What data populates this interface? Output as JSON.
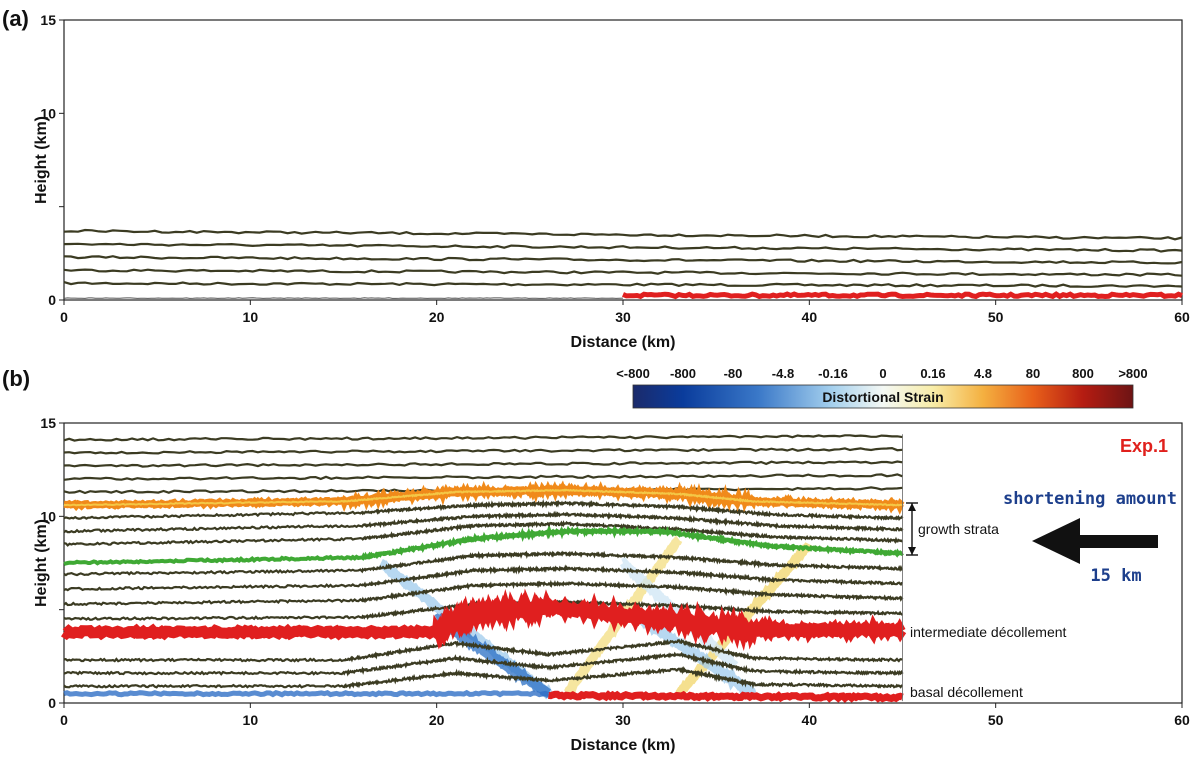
{
  "chart_data": [
    {
      "panel_label": "(a)",
      "type": "scatter",
      "xlabel": "Distance (km)",
      "ylabel": "Height (km)",
      "xlim": [
        0,
        60
      ],
      "ylim": [
        0,
        15
      ],
      "x_ticks": [
        0,
        10,
        20,
        30,
        40,
        50,
        60
      ],
      "y_ticks": [
        0,
        5,
        10,
        15
      ],
      "y_tick_labels": [
        "0",
        "",
        "10",
        "15"
      ],
      "layer_lines": [
        {
          "x": [
            0,
            60
          ],
          "y": [
            0.9,
            0.75
          ]
        },
        {
          "x": [
            0,
            60
          ],
          "y": [
            1.6,
            1.35
          ]
        },
        {
          "x": [
            0,
            60
          ],
          "y": [
            2.3,
            2.0
          ]
        },
        {
          "x": [
            0,
            60
          ],
          "y": [
            3.0,
            2.65
          ]
        },
        {
          "x": [
            0,
            60
          ],
          "y": [
            3.7,
            3.3
          ]
        }
      ],
      "decollement": {
        "x": [
          30,
          60
        ],
        "y": [
          0.25,
          0.25
        ]
      },
      "grid": false
    },
    {
      "panel_label": "(b)",
      "type": "scatter",
      "xlabel": "Distance (km)",
      "ylabel": "Height (km)",
      "xlim": [
        0,
        60
      ],
      "ylim": [
        0,
        15
      ],
      "x_ticks": [
        0,
        10,
        20,
        30,
        40,
        50,
        60
      ],
      "y_ticks": [
        0,
        5,
        10,
        15
      ],
      "y_tick_labels": [
        "0",
        "",
        "10",
        "15"
      ],
      "colorbar": {
        "title": "Distortional Strain",
        "tick_labels": [
          "<-800",
          "-800",
          "-80",
          "-4.8",
          "-0.16",
          "0",
          "0.16",
          "4.8",
          "80",
          "800",
          ">800"
        ],
        "colors": [
          "#1b2a6b",
          "#0a3c9c",
          "#3a78c8",
          "#a6d1ee",
          "#eef6fb",
          "#fbf6c8",
          "#f4c35a",
          "#ef7c1a",
          "#d4260f",
          "#8e1616",
          "#6d1414"
        ]
      },
      "annotations": {
        "experiment": "Exp.1",
        "shortening_title": "shortening amount",
        "shortening_value": "15 km",
        "growth_strata": "growth strata",
        "intermediate_decollement": "intermediate décollement",
        "basal_decollement": "basal décollement"
      },
      "model_extent_x": [
        0,
        45
      ],
      "layer_lines_km": [
        {
          "x": [
            0,
            15,
            21,
            26,
            33,
            37,
            45
          ],
          "y": [
            0.9,
            0.9,
            1.6,
            1.2,
            1.8,
            1.0,
            0.9
          ]
        },
        {
          "x": [
            0,
            15,
            21,
            26,
            33,
            37,
            45
          ],
          "y": [
            1.6,
            1.6,
            2.4,
            1.9,
            2.6,
            1.7,
            1.6
          ]
        },
        {
          "x": [
            0,
            15,
            21,
            26,
            33,
            37,
            45
          ],
          "y": [
            2.3,
            2.3,
            3.2,
            2.6,
            3.3,
            2.4,
            2.3
          ]
        },
        {
          "x": [
            0,
            16,
            22,
            27,
            33,
            38,
            45
          ],
          "y": [
            4.5,
            4.6,
            5.3,
            5.4,
            5.2,
            4.9,
            4.8
          ]
        },
        {
          "x": [
            0,
            16,
            22,
            27,
            33,
            38,
            45
          ],
          "y": [
            5.3,
            5.5,
            6.3,
            6.4,
            6.2,
            5.8,
            5.6
          ]
        },
        {
          "x": [
            0,
            16,
            22,
            27,
            33,
            38,
            45
          ],
          "y": [
            6.1,
            6.3,
            7.1,
            7.2,
            7.0,
            6.6,
            6.4
          ]
        },
        {
          "x": [
            0,
            16,
            22,
            27,
            33,
            38,
            45
          ],
          "y": [
            6.9,
            7.1,
            7.9,
            8.0,
            7.8,
            7.4,
            7.2
          ]
        },
        {
          "x": [
            0,
            16,
            22,
            27,
            33,
            38,
            45
          ],
          "y": [
            8.5,
            8.8,
            9.5,
            9.6,
            9.3,
            8.9,
            8.7
          ]
        },
        {
          "x": [
            0,
            16,
            22,
            27,
            33,
            38,
            45
          ],
          "y": [
            9.2,
            9.5,
            10.0,
            10.1,
            9.9,
            9.5,
            9.3
          ]
        },
        {
          "x": [
            0,
            16,
            22,
            27,
            33,
            38,
            45
          ],
          "y": [
            9.9,
            10.2,
            10.6,
            10.7,
            10.5,
            10.1,
            9.9
          ]
        },
        {
          "x": [
            0,
            45
          ],
          "y": [
            11.3,
            11.5
          ]
        },
        {
          "x": [
            0,
            45
          ],
          "y": [
            12.0,
            12.2
          ]
        },
        {
          "x": [
            0,
            45
          ],
          "y": [
            12.7,
            12.9
          ]
        },
        {
          "x": [
            0,
            45
          ],
          "y": [
            13.4,
            13.6
          ]
        },
        {
          "x": [
            0,
            45
          ],
          "y": [
            14.1,
            14.3
          ]
        }
      ],
      "green_horizon": {
        "x": [
          0,
          16,
          22,
          27,
          32,
          38,
          45
        ],
        "y": [
          7.5,
          7.8,
          8.8,
          9.2,
          9.2,
          8.4,
          8.0
        ]
      },
      "orange_horizon": {
        "x": [
          0,
          15,
          21,
          27,
          33,
          37,
          45
        ],
        "y": [
          10.6,
          10.8,
          11.3,
          11.4,
          11.2,
          10.8,
          10.6
        ]
      },
      "intermediate_decollement_line": {
        "x": [
          0,
          20,
          22,
          26,
          33,
          37,
          45
        ],
        "y": [
          3.8,
          3.8,
          4.8,
          5.1,
          4.4,
          3.9,
          3.9
        ]
      },
      "basal_decollement_line": {
        "x": [
          26,
          45
        ],
        "y": [
          0.4,
          0.3
        ]
      },
      "blue_fault_zone": {
        "x": [
          0,
          26
        ],
        "y": [
          0.5,
          0.5
        ]
      },
      "grid": false
    }
  ]
}
